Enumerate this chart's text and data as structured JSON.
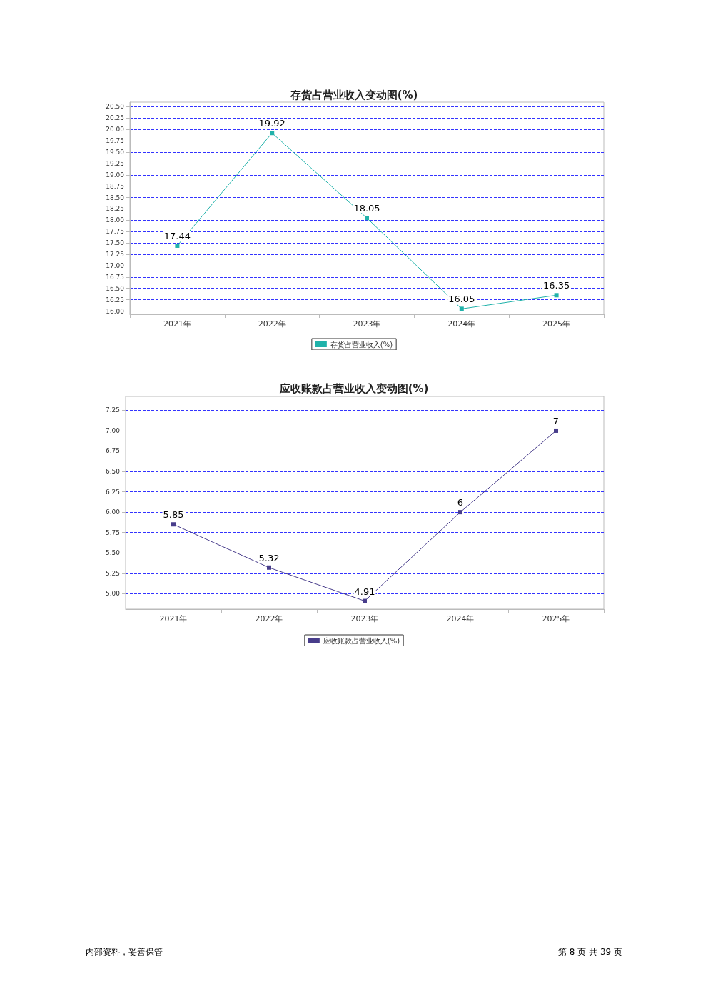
{
  "chart_data": [
    {
      "type": "line",
      "title": "存货占营业收入变动图(%)",
      "categories": [
        "2021年",
        "2022年",
        "2023年",
        "2024年",
        "2025年"
      ],
      "series": [
        {
          "name": "存货占营业收入(%)",
          "color": "#20b2aa",
          "values": [
            17.44,
            19.92,
            18.05,
            16.05,
            16.35
          ]
        }
      ],
      "ylim": [
        15.93,
        20.6
      ],
      "yticks": [
        {
          "value": 16,
          "label": "16.00"
        },
        {
          "value": 16.25,
          "label": "16.25"
        },
        {
          "value": 16.5,
          "label": "16.50"
        },
        {
          "value": 16.75,
          "label": "16.75"
        },
        {
          "value": 17,
          "label": "17.00"
        },
        {
          "value": 17.25,
          "label": "17.25"
        },
        {
          "value": 17.5,
          "label": "17.50"
        },
        {
          "value": 17.75,
          "label": "17.75"
        },
        {
          "value": 18,
          "label": "18.00"
        },
        {
          "value": 18.25,
          "label": "18.25"
        },
        {
          "value": 18.5,
          "label": "18.50"
        },
        {
          "value": 18.75,
          "label": "18.75"
        },
        {
          "value": 19,
          "label": "19.00"
        },
        {
          "value": 19.25,
          "label": "19.25"
        },
        {
          "value": 19.5,
          "label": "19.50"
        },
        {
          "value": 19.75,
          "label": "19.75"
        },
        {
          "value": 20,
          "label": "20.00"
        },
        {
          "value": 20.25,
          "label": "20.25"
        },
        {
          "value": 20.5,
          "label": "20.50"
        }
      ],
      "grid": "y",
      "legend": "bottom",
      "marker": "square",
      "line_style": "solid",
      "data_labels": true
    },
    {
      "type": "line",
      "title": "应收账款占营业收入变动图(%)",
      "categories": [
        "2021年",
        "2022年",
        "2023年",
        "2024年",
        "2025年"
      ],
      "series": [
        {
          "name": "应收账款占营业收入(%)",
          "color": "#483d8b",
          "values": [
            5.85,
            5.32,
            4.91,
            6,
            7
          ]
        }
      ],
      "ylim": [
        4.81,
        7.42
      ],
      "yticks": [
        {
          "value": 5,
          "label": "5.00"
        },
        {
          "value": 5.25,
          "label": "5.25"
        },
        {
          "value": 5.5,
          "label": "5.50"
        },
        {
          "value": 5.75,
          "label": "5.75"
        },
        {
          "value": 6,
          "label": "6.00"
        },
        {
          "value": 6.25,
          "label": "6.25"
        },
        {
          "value": 6.5,
          "label": "6.50"
        },
        {
          "value": 6.75,
          "label": "6.75"
        },
        {
          "value": 7,
          "label": "7.00"
        },
        {
          "value": 7.25,
          "label": "7.25"
        }
      ],
      "grid": "y",
      "legend": "bottom",
      "marker": "square",
      "line_style": "solid",
      "data_labels": true,
      "annotations": [
        "内部资料，妥善保管",
        "第 8 页 共 39 页"
      ]
    }
  ]
}
